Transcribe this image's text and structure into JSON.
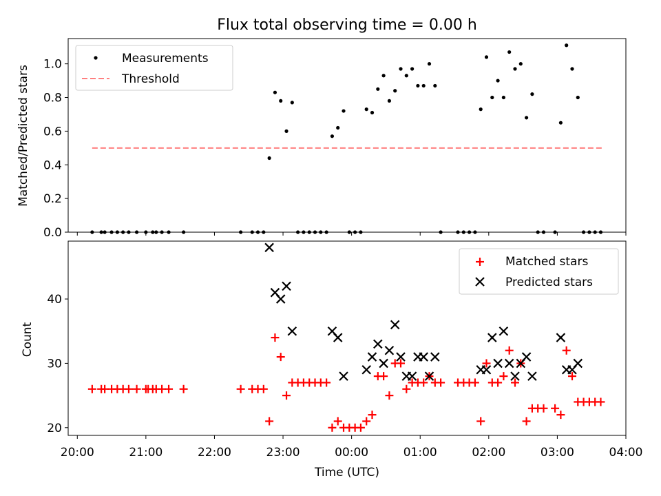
{
  "title": "Flux total observing time = 0.00 h",
  "colors": {
    "threshold": "#ff7f7f",
    "matched": "#ff0000",
    "predicted": "#000000",
    "measurement": "#000000"
  },
  "chart_data": [
    {
      "type": "scatter",
      "title": "Flux total observing time = 0.00 h",
      "ylabel": "Matched/Predicted stars",
      "xlabel": "",
      "ylim": [
        0,
        1.15
      ],
      "yticks": [
        "0.0",
        "0.2",
        "0.4",
        "0.6",
        "0.8",
        "1.0"
      ],
      "legend": {
        "position": "top-left",
        "entries": [
          "Measurements",
          "Threshold"
        ]
      },
      "threshold": {
        "name": "Threshold",
        "value": 0.5,
        "x_start": "20:13",
        "x_end": "03:40"
      },
      "series": [
        {
          "name": "Measurements",
          "points": [
            [
              "20:13",
              0
            ],
            [
              "20:21",
              0
            ],
            [
              "20:24",
              0
            ],
            [
              "20:30",
              0
            ],
            [
              "20:35",
              0
            ],
            [
              "20:40",
              0
            ],
            [
              "20:45",
              0
            ],
            [
              "20:52",
              0
            ],
            [
              "21:00",
              0
            ],
            [
              "21:06",
              0
            ],
            [
              "21:09",
              0
            ],
            [
              "21:14",
              0
            ],
            [
              "21:20",
              0
            ],
            [
              "21:33",
              0
            ],
            [
              "22:23",
              0
            ],
            [
              "22:33",
              0
            ],
            [
              "22:38",
              0
            ],
            [
              "22:43",
              0
            ],
            [
              "22:48",
              0.44
            ],
            [
              "22:53",
              0.83
            ],
            [
              "22:58",
              0.78
            ],
            [
              "23:03",
              0.6
            ],
            [
              "23:08",
              0.77
            ],
            [
              "23:13",
              0
            ],
            [
              "23:18",
              0
            ],
            [
              "23:23",
              0
            ],
            [
              "23:28",
              0
            ],
            [
              "23:33",
              0
            ],
            [
              "23:38",
              0
            ],
            [
              "23:43",
              0.57
            ],
            [
              "23:48",
              0.62
            ],
            [
              "23:53",
              0.72
            ],
            [
              "23:58",
              0
            ],
            [
              "00:03",
              0
            ],
            [
              "00:08",
              0
            ],
            [
              "00:13",
              0.73
            ],
            [
              "00:18",
              0.71
            ],
            [
              "00:23",
              0.85
            ],
            [
              "00:28",
              0.93
            ],
            [
              "00:33",
              0.78
            ],
            [
              "00:38",
              0.84
            ],
            [
              "00:43",
              0.97
            ],
            [
              "00:48",
              0.93
            ],
            [
              "00:53",
              0.97
            ],
            [
              "00:58",
              0.87
            ],
            [
              "01:03",
              0.87
            ],
            [
              "01:08",
              1.0
            ],
            [
              "01:13",
              0.87
            ],
            [
              "01:18",
              0
            ],
            [
              "01:33",
              0
            ],
            [
              "01:38",
              0
            ],
            [
              "01:43",
              0
            ],
            [
              "01:48",
              0
            ],
            [
              "01:53",
              0.73
            ],
            [
              "01:58",
              1.04
            ],
            [
              "02:03",
              0.8
            ],
            [
              "02:08",
              0.9
            ],
            [
              "02:13",
              0.8
            ],
            [
              "02:18",
              1.07
            ],
            [
              "02:23",
              0.97
            ],
            [
              "02:28",
              1.0
            ],
            [
              "02:33",
              0.68
            ],
            [
              "02:38",
              0.82
            ],
            [
              "02:43",
              0
            ],
            [
              "02:48",
              0
            ],
            [
              "02:58",
              0
            ],
            [
              "03:03",
              0.65
            ],
            [
              "03:08",
              1.11
            ],
            [
              "03:13",
              0.97
            ],
            [
              "03:18",
              0.8
            ],
            [
              "03:23",
              0
            ],
            [
              "03:28",
              0
            ],
            [
              "03:33",
              0
            ],
            [
              "03:38",
              0
            ]
          ]
        }
      ]
    },
    {
      "type": "scatter",
      "xlabel": "Time (UTC)",
      "ylabel": "Count",
      "ylim": [
        18.8,
        49
      ],
      "yticks": [
        "20",
        "30",
        "40"
      ],
      "xlim": [
        "19:52",
        "04:00"
      ],
      "xticks": [
        "20:00",
        "21:00",
        "22:00",
        "23:00",
        "00:00",
        "01:00",
        "02:00",
        "03:00",
        "04:00"
      ],
      "legend": {
        "position": "top-right",
        "entries": [
          "Matched stars",
          "Predicted stars"
        ]
      },
      "series": [
        {
          "name": "Matched stars",
          "points": [
            [
              "20:13",
              26
            ],
            [
              "20:21",
              26
            ],
            [
              "20:24",
              26
            ],
            [
              "20:30",
              26
            ],
            [
              "20:35",
              26
            ],
            [
              "20:40",
              26
            ],
            [
              "20:45",
              26
            ],
            [
              "20:52",
              26
            ],
            [
              "21:00",
              26
            ],
            [
              "21:02",
              26
            ],
            [
              "21:06",
              26
            ],
            [
              "21:09",
              26
            ],
            [
              "21:14",
              26
            ],
            [
              "21:20",
              26
            ],
            [
              "21:33",
              26
            ],
            [
              "22:23",
              26
            ],
            [
              "22:33",
              26
            ],
            [
              "22:38",
              26
            ],
            [
              "22:43",
              26
            ],
            [
              "22:48",
              21
            ],
            [
              "22:53",
              34
            ],
            [
              "22:58",
              31
            ],
            [
              "23:03",
              25
            ],
            [
              "23:08",
              27
            ],
            [
              "23:13",
              27
            ],
            [
              "23:18",
              27
            ],
            [
              "23:23",
              27
            ],
            [
              "23:28",
              27
            ],
            [
              "23:33",
              27
            ],
            [
              "23:38",
              27
            ],
            [
              "23:43",
              20
            ],
            [
              "23:48",
              21
            ],
            [
              "23:53",
              20
            ],
            [
              "23:58",
              20
            ],
            [
              "00:03",
              20
            ],
            [
              "00:08",
              20
            ],
            [
              "00:13",
              21
            ],
            [
              "00:18",
              22
            ],
            [
              "00:23",
              28
            ],
            [
              "00:28",
              28
            ],
            [
              "00:33",
              25
            ],
            [
              "00:38",
              30
            ],
            [
              "00:43",
              30
            ],
            [
              "00:48",
              26
            ],
            [
              "00:53",
              27
            ],
            [
              "00:58",
              27
            ],
            [
              "01:03",
              27
            ],
            [
              "01:08",
              28
            ],
            [
              "01:13",
              27
            ],
            [
              "01:18",
              27
            ],
            [
              "01:33",
              27
            ],
            [
              "01:38",
              27
            ],
            [
              "01:43",
              27
            ],
            [
              "01:48",
              27
            ],
            [
              "01:53",
              21
            ],
            [
              "01:58",
              30
            ],
            [
              "02:03",
              27
            ],
            [
              "02:08",
              27
            ],
            [
              "02:13",
              28
            ],
            [
              "02:18",
              32
            ],
            [
              "02:23",
              27
            ],
            [
              "02:28",
              30
            ],
            [
              "02:33",
              21
            ],
            [
              "02:38",
              23
            ],
            [
              "02:43",
              23
            ],
            [
              "02:48",
              23
            ],
            [
              "02:58",
              23
            ],
            [
              "03:03",
              22
            ],
            [
              "03:08",
              32
            ],
            [
              "03:13",
              28
            ],
            [
              "03:18",
              24
            ],
            [
              "03:23",
              24
            ],
            [
              "03:28",
              24
            ],
            [
              "03:33",
              24
            ],
            [
              "03:38",
              24
            ]
          ]
        },
        {
          "name": "Predicted stars",
          "points": [
            [
              "22:48",
              48
            ],
            [
              "22:53",
              41
            ],
            [
              "22:58",
              40
            ],
            [
              "23:03",
              42
            ],
            [
              "23:08",
              35
            ],
            [
              "23:43",
              35
            ],
            [
              "23:48",
              34
            ],
            [
              "23:53",
              28
            ],
            [
              "00:13",
              29
            ],
            [
              "00:18",
              31
            ],
            [
              "00:23",
              33
            ],
            [
              "00:28",
              30
            ],
            [
              "00:33",
              32
            ],
            [
              "00:38",
              36
            ],
            [
              "00:43",
              31
            ],
            [
              "00:48",
              28
            ],
            [
              "00:53",
              28
            ],
            [
              "00:58",
              31
            ],
            [
              "01:03",
              31
            ],
            [
              "01:08",
              28
            ],
            [
              "01:13",
              31
            ],
            [
              "01:53",
              29
            ],
            [
              "01:58",
              29
            ],
            [
              "02:03",
              34
            ],
            [
              "02:08",
              30
            ],
            [
              "02:13",
              35
            ],
            [
              "02:18",
              30
            ],
            [
              "02:23",
              28
            ],
            [
              "02:28",
              30
            ],
            [
              "02:33",
              31
            ],
            [
              "02:38",
              28
            ],
            [
              "03:03",
              34
            ],
            [
              "03:08",
              29
            ],
            [
              "03:13",
              29
            ],
            [
              "03:18",
              30
            ]
          ]
        }
      ]
    }
  ]
}
